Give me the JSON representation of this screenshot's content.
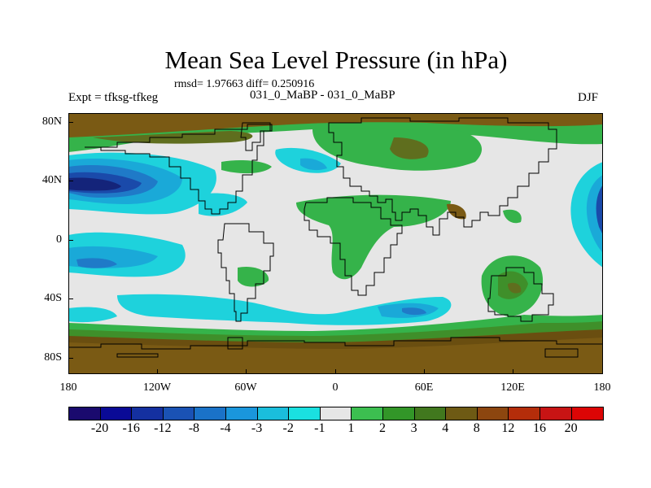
{
  "title": "Mean Sea Level Pressure (in hPa)",
  "stats": "rmsd= 1.97663 diff= 0.250916",
  "experiment": "Expt = tfksg-tfkeg",
  "period": "031_0_MaBP - 031_0_MaBP",
  "season": "DJF",
  "y_axis_labels": [
    "80N",
    "40N",
    "0",
    "40S",
    "80S"
  ],
  "x_axis_labels": [
    "180",
    "120W",
    "60W",
    "0",
    "60E",
    "120E",
    "180"
  ],
  "colorbar": {
    "labels": [
      "-20",
      "-16",
      "-12",
      "-8",
      "-4",
      "-3",
      "-2",
      "-1",
      "1",
      "2",
      "3",
      "4",
      "8",
      "12",
      "16",
      "20"
    ],
    "colors": [
      "#1a0a6e",
      "#0a0a96",
      "#1430a0",
      "#1a52b4",
      "#1a72c8",
      "#1a96dc",
      "#1abedc",
      "#1ae0e0",
      "#e6e6e6",
      "#3cbf50",
      "#329628",
      "#41781e",
      "#6e5a14",
      "#8c460f",
      "#b42d0a",
      "#c81414",
      "#dc0505"
    ]
  },
  "colors": {
    "neutral": "#e6e6e6",
    "green": "#35b34a",
    "green_dark": "#3f8f2a",
    "olive": "#5f6e1e",
    "brown": "#7a5a14",
    "brown_dark": "#6a4e10",
    "cyan": "#1ed2dc",
    "cyan_mid": "#1aa9d8",
    "blue": "#1f7ac8",
    "blue_dark": "#1a4aaa",
    "navy": "#14247a",
    "coast": "#000000"
  }
}
